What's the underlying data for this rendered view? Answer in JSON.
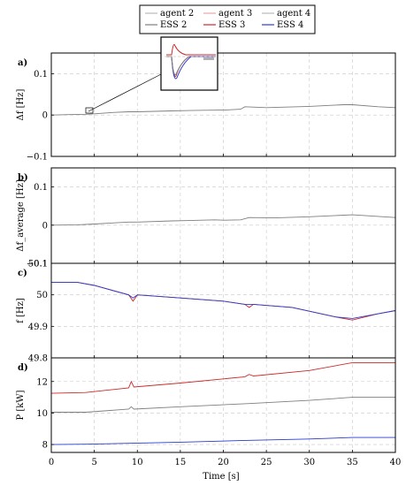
{
  "legend": {
    "entries": [
      {
        "label": "agent 2",
        "color": "#b9b9b9",
        "kind": "agent"
      },
      {
        "label": "agent 3",
        "color": "#e8a6a6",
        "kind": "agent"
      },
      {
        "label": "agent 4",
        "color": "#b9b9b9",
        "kind": "agent"
      },
      {
        "label": "ESS 2",
        "color": "#7f7f7f",
        "kind": "ess"
      },
      {
        "label": "ESS 3",
        "color": "#cc2a2a",
        "kind": "ess"
      },
      {
        "label": "ESS 4",
        "color": "#2a3ccf",
        "kind": "ess"
      }
    ]
  },
  "xlabel": "Time [s]",
  "chart_data": [
    {
      "panel": "a)",
      "type": "line",
      "ylabel": "Δf [Hz]",
      "xlim": [
        0,
        40
      ],
      "ylim": [
        -0.1,
        0.15
      ],
      "yticks": [
        "0.1",
        "0",
        "−0.1"
      ],
      "ytick_values": [
        0.1,
        0,
        -0.1
      ],
      "grid": true,
      "series": [
        {
          "color": "#7f7f7f",
          "x": [
            0,
            2,
            4,
            5,
            7,
            9,
            10,
            14,
            16,
            19.5,
            20,
            22,
            22.5,
            25,
            30,
            34,
            35,
            38,
            40
          ],
          "y": [
            0,
            0.001,
            0.002,
            0.003,
            0.006,
            0.008,
            0.008,
            0.01,
            0.011,
            0.012,
            0.012,
            0.014,
            0.02,
            0.018,
            0.021,
            0.025,
            0.025,
            0.02,
            0.018
          ]
        }
      ],
      "inset": {
        "note": "zoomed transient"
      }
    },
    {
      "panel": "b)",
      "type": "line",
      "ylabel": "Δf_average [Hz]",
      "xlim": [
        0,
        40
      ],
      "ylim": [
        -0.1,
        0.15
      ],
      "yticks": [
        "0.1",
        "0",
        "−0.1"
      ],
      "ytick_values": [
        0.1,
        0,
        -0.1
      ],
      "grid": true,
      "series": [
        {
          "color": "#7f7f7f",
          "x": [
            0,
            3,
            5,
            9,
            10,
            14,
            16,
            19,
            20,
            22,
            23,
            26,
            30,
            35,
            40
          ],
          "y": [
            0,
            0.001,
            0.003,
            0.008,
            0.008,
            0.011,
            0.012,
            0.014,
            0.013,
            0.014,
            0.02,
            0.019,
            0.022,
            0.027,
            0.02
          ]
        }
      ]
    },
    {
      "panel": "c)",
      "type": "line",
      "ylabel": "f [Hz]",
      "xlim": [
        0,
        40
      ],
      "ylim": [
        49.8,
        50.1
      ],
      "yticks": [
        "50.1",
        "50",
        "49.9",
        "49.8"
      ],
      "ytick_values": [
        50.1,
        50,
        49.9,
        49.8
      ],
      "grid": true,
      "series": [
        {
          "color": "#cc2a2a",
          "x": [
            0,
            3,
            5,
            9,
            9.5,
            10,
            15,
            20,
            22.5,
            23,
            23.5,
            28,
            33,
            35,
            38,
            40
          ],
          "y": [
            50.04,
            50.04,
            50.03,
            50.0,
            49.98,
            50.0,
            49.99,
            49.98,
            49.97,
            49.96,
            49.97,
            49.96,
            49.93,
            49.92,
            49.94,
            49.95
          ]
        },
        {
          "color": "#2a3ccf",
          "x": [
            0,
            3,
            5,
            9,
            9.5,
            10,
            15,
            20,
            22.5,
            23,
            23.5,
            28,
            33,
            35,
            38,
            40
          ],
          "y": [
            50.04,
            50.04,
            50.03,
            50.0,
            49.99,
            50.0,
            49.99,
            49.98,
            49.97,
            49.97,
            49.97,
            49.96,
            49.93,
            49.925,
            49.94,
            49.95
          ]
        }
      ]
    },
    {
      "panel": "d)",
      "type": "line",
      "ylabel": "P [kW]",
      "xlim": [
        0,
        40
      ],
      "ylim": [
        7.5,
        13.5
      ],
      "yticks": [
        "12",
        "10",
        "8"
      ],
      "ytick_values": [
        12,
        10,
        8
      ],
      "grid": true,
      "series": [
        {
          "color": "#cc2a2a",
          "x": [
            0,
            4,
            9,
            9.3,
            9.6,
            15,
            22.5,
            23,
            23.5,
            30,
            35,
            40
          ],
          "y": [
            11.25,
            11.3,
            11.6,
            12.0,
            11.65,
            11.9,
            12.3,
            12.45,
            12.35,
            12.7,
            13.2,
            13.2
          ]
        },
        {
          "color": "#7f7f7f",
          "x": [
            0,
            4,
            9,
            9.3,
            9.6,
            15,
            23,
            30,
            35,
            40
          ],
          "y": [
            10.05,
            10.05,
            10.25,
            10.4,
            10.25,
            10.4,
            10.6,
            10.8,
            11.0,
            11.0
          ]
        },
        {
          "color": "#2a3ccf",
          "x": [
            0,
            4,
            9,
            15,
            22,
            30,
            35,
            40
          ],
          "y": [
            8.0,
            8.02,
            8.08,
            8.15,
            8.25,
            8.35,
            8.45,
            8.45
          ]
        }
      ]
    }
  ],
  "xticks": [
    "0",
    "5",
    "10",
    "15",
    "20",
    "25",
    "30",
    "35",
    "40"
  ],
  "xtick_values": [
    0,
    5,
    10,
    15,
    20,
    25,
    30,
    35,
    40
  ]
}
